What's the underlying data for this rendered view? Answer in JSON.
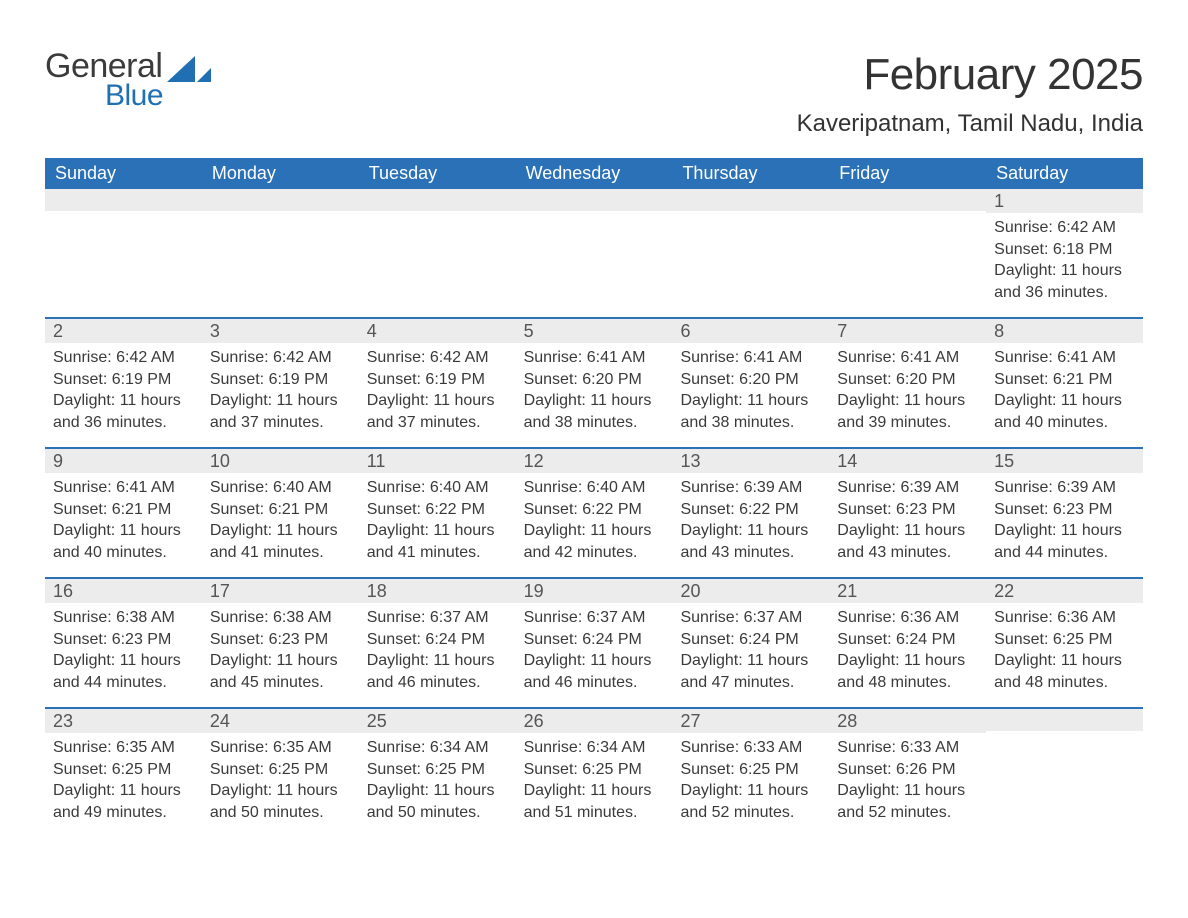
{
  "logo": {
    "word1": "General",
    "word2": "Blue",
    "shape_color": "#1f6fb2",
    "text_color_dark": "#3b3b3b"
  },
  "title": "February 2025",
  "location": "Kaveripatnam, Tamil Nadu, India",
  "colors": {
    "header_bg": "#2a71b8",
    "header_text": "#ffffff",
    "daynum_bg": "#ececec",
    "daynum_text": "#555555",
    "body_text": "#3a3a3a",
    "row_divider": "#2a71b8",
    "page_bg": "#ffffff"
  },
  "fonts": {
    "title_size_pt": 33,
    "location_size_pt": 18,
    "weekday_size_pt": 14,
    "daynum_size_pt": 14,
    "body_size_pt": 12
  },
  "weekdays": [
    "Sunday",
    "Monday",
    "Tuesday",
    "Wednesday",
    "Thursday",
    "Friday",
    "Saturday"
  ],
  "weeks": [
    [
      null,
      null,
      null,
      null,
      null,
      null,
      {
        "n": "1",
        "sunrise": "Sunrise: 6:42 AM",
        "sunset": "Sunset: 6:18 PM",
        "daylight": "Daylight: 11 hours and 36 minutes."
      }
    ],
    [
      {
        "n": "2",
        "sunrise": "Sunrise: 6:42 AM",
        "sunset": "Sunset: 6:19 PM",
        "daylight": "Daylight: 11 hours and 36 minutes."
      },
      {
        "n": "3",
        "sunrise": "Sunrise: 6:42 AM",
        "sunset": "Sunset: 6:19 PM",
        "daylight": "Daylight: 11 hours and 37 minutes."
      },
      {
        "n": "4",
        "sunrise": "Sunrise: 6:42 AM",
        "sunset": "Sunset: 6:19 PM",
        "daylight": "Daylight: 11 hours and 37 minutes."
      },
      {
        "n": "5",
        "sunrise": "Sunrise: 6:41 AM",
        "sunset": "Sunset: 6:20 PM",
        "daylight": "Daylight: 11 hours and 38 minutes."
      },
      {
        "n": "6",
        "sunrise": "Sunrise: 6:41 AM",
        "sunset": "Sunset: 6:20 PM",
        "daylight": "Daylight: 11 hours and 38 minutes."
      },
      {
        "n": "7",
        "sunrise": "Sunrise: 6:41 AM",
        "sunset": "Sunset: 6:20 PM",
        "daylight": "Daylight: 11 hours and 39 minutes."
      },
      {
        "n": "8",
        "sunrise": "Sunrise: 6:41 AM",
        "sunset": "Sunset: 6:21 PM",
        "daylight": "Daylight: 11 hours and 40 minutes."
      }
    ],
    [
      {
        "n": "9",
        "sunrise": "Sunrise: 6:41 AM",
        "sunset": "Sunset: 6:21 PM",
        "daylight": "Daylight: 11 hours and 40 minutes."
      },
      {
        "n": "10",
        "sunrise": "Sunrise: 6:40 AM",
        "sunset": "Sunset: 6:21 PM",
        "daylight": "Daylight: 11 hours and 41 minutes."
      },
      {
        "n": "11",
        "sunrise": "Sunrise: 6:40 AM",
        "sunset": "Sunset: 6:22 PM",
        "daylight": "Daylight: 11 hours and 41 minutes."
      },
      {
        "n": "12",
        "sunrise": "Sunrise: 6:40 AM",
        "sunset": "Sunset: 6:22 PM",
        "daylight": "Daylight: 11 hours and 42 minutes."
      },
      {
        "n": "13",
        "sunrise": "Sunrise: 6:39 AM",
        "sunset": "Sunset: 6:22 PM",
        "daylight": "Daylight: 11 hours and 43 minutes."
      },
      {
        "n": "14",
        "sunrise": "Sunrise: 6:39 AM",
        "sunset": "Sunset: 6:23 PM",
        "daylight": "Daylight: 11 hours and 43 minutes."
      },
      {
        "n": "15",
        "sunrise": "Sunrise: 6:39 AM",
        "sunset": "Sunset: 6:23 PM",
        "daylight": "Daylight: 11 hours and 44 minutes."
      }
    ],
    [
      {
        "n": "16",
        "sunrise": "Sunrise: 6:38 AM",
        "sunset": "Sunset: 6:23 PM",
        "daylight": "Daylight: 11 hours and 44 minutes."
      },
      {
        "n": "17",
        "sunrise": "Sunrise: 6:38 AM",
        "sunset": "Sunset: 6:23 PM",
        "daylight": "Daylight: 11 hours and 45 minutes."
      },
      {
        "n": "18",
        "sunrise": "Sunrise: 6:37 AM",
        "sunset": "Sunset: 6:24 PM",
        "daylight": "Daylight: 11 hours and 46 minutes."
      },
      {
        "n": "19",
        "sunrise": "Sunrise: 6:37 AM",
        "sunset": "Sunset: 6:24 PM",
        "daylight": "Daylight: 11 hours and 46 minutes."
      },
      {
        "n": "20",
        "sunrise": "Sunrise: 6:37 AM",
        "sunset": "Sunset: 6:24 PM",
        "daylight": "Daylight: 11 hours and 47 minutes."
      },
      {
        "n": "21",
        "sunrise": "Sunrise: 6:36 AM",
        "sunset": "Sunset: 6:24 PM",
        "daylight": "Daylight: 11 hours and 48 minutes."
      },
      {
        "n": "22",
        "sunrise": "Sunrise: 6:36 AM",
        "sunset": "Sunset: 6:25 PM",
        "daylight": "Daylight: 11 hours and 48 minutes."
      }
    ],
    [
      {
        "n": "23",
        "sunrise": "Sunrise: 6:35 AM",
        "sunset": "Sunset: 6:25 PM",
        "daylight": "Daylight: 11 hours and 49 minutes."
      },
      {
        "n": "24",
        "sunrise": "Sunrise: 6:35 AM",
        "sunset": "Sunset: 6:25 PM",
        "daylight": "Daylight: 11 hours and 50 minutes."
      },
      {
        "n": "25",
        "sunrise": "Sunrise: 6:34 AM",
        "sunset": "Sunset: 6:25 PM",
        "daylight": "Daylight: 11 hours and 50 minutes."
      },
      {
        "n": "26",
        "sunrise": "Sunrise: 6:34 AM",
        "sunset": "Sunset: 6:25 PM",
        "daylight": "Daylight: 11 hours and 51 minutes."
      },
      {
        "n": "27",
        "sunrise": "Sunrise: 6:33 AM",
        "sunset": "Sunset: 6:25 PM",
        "daylight": "Daylight: 11 hours and 52 minutes."
      },
      {
        "n": "28",
        "sunrise": "Sunrise: 6:33 AM",
        "sunset": "Sunset: 6:26 PM",
        "daylight": "Daylight: 11 hours and 52 minutes."
      },
      null
    ]
  ]
}
